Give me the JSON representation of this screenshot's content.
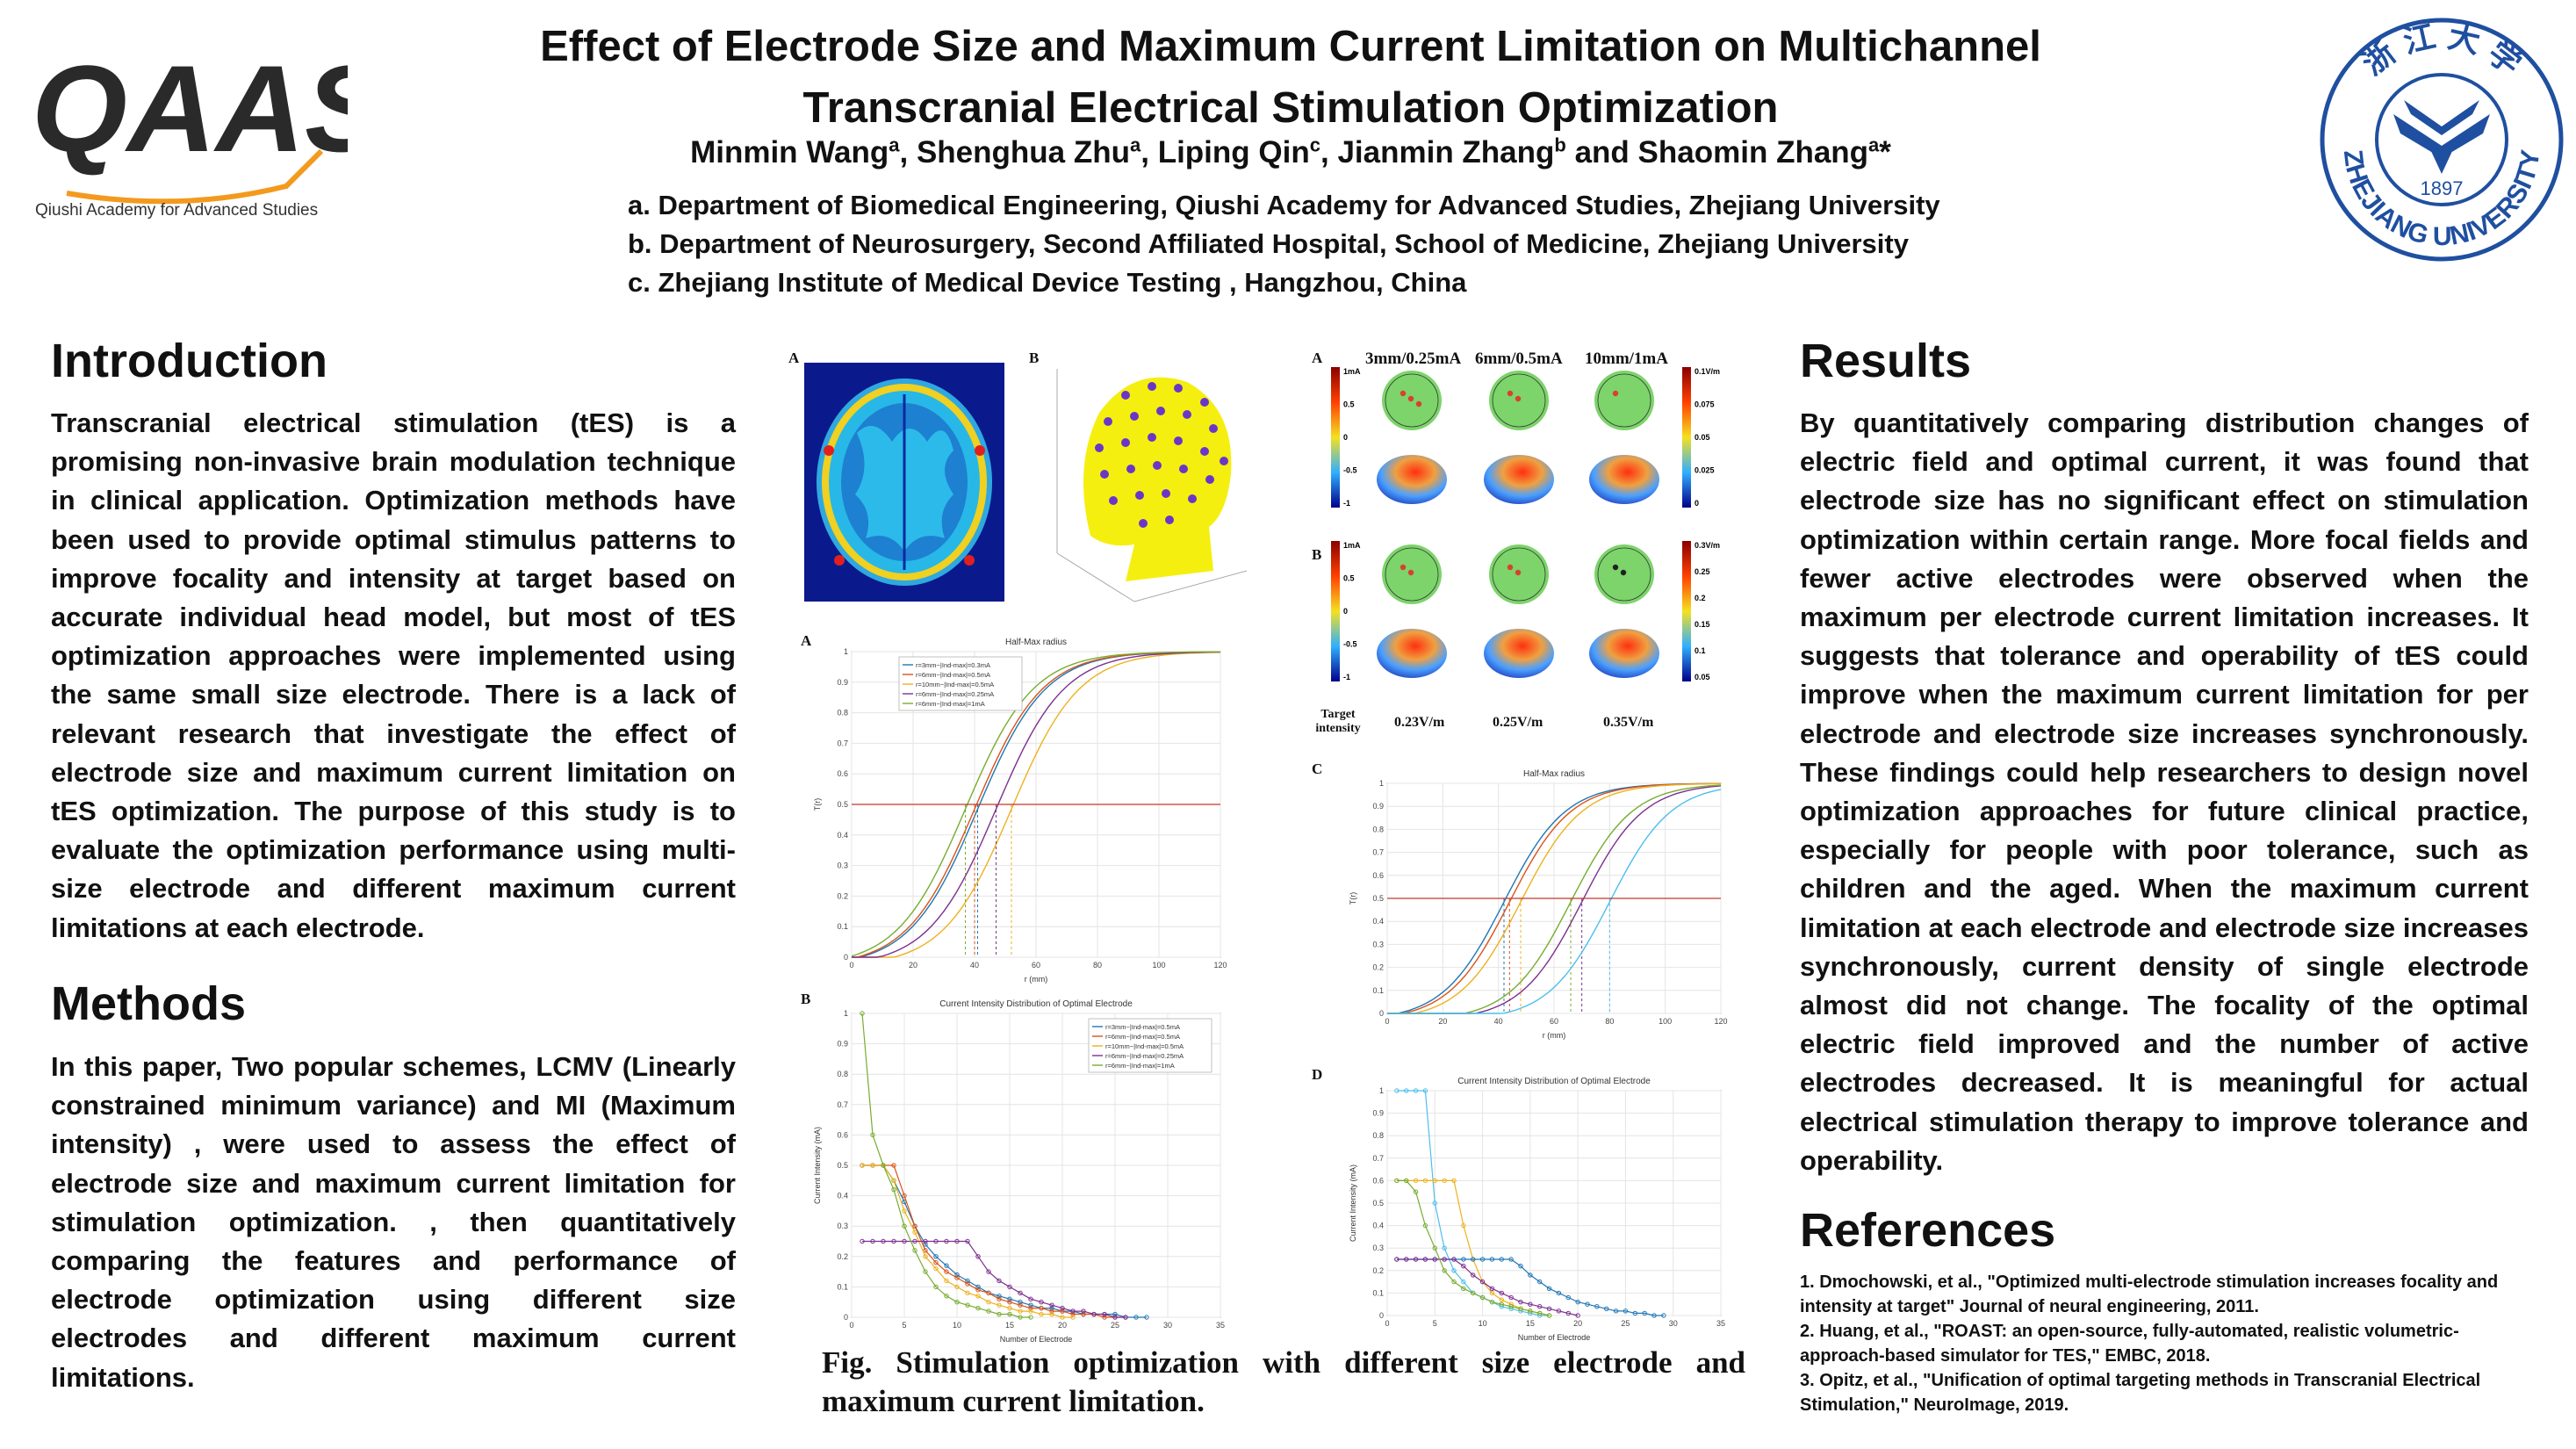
{
  "header": {
    "title_line1": "Effect of Electrode Size and Maximum Current Limitation on Multichannel",
    "title_line2": "Transcranial Electrical Stimulation Optimization",
    "authors": [
      {
        "name": "Minmin Wang",
        "sup": "a",
        "sep": ", "
      },
      {
        "name": "Shenghua Zhu",
        "sup": "a",
        "sep": ", "
      },
      {
        "name": "Liping Qin",
        "sup": "c",
        "sep": ", "
      },
      {
        "name": "Jianmin Zhang",
        "sup": "b",
        "sep": " and "
      },
      {
        "name": "Shaomin Zhang",
        "sup": "a",
        "sep": "*"
      }
    ],
    "affiliations": [
      "a. Department of Biomedical Engineering, Qiushi Academy for Advanced Studies, Zhejiang University",
      "b. Department of Neurosurgery, Second Affiliated Hospital, School of Medicine, Zhejiang University",
      "c. Zhejiang Institute of Medical Device Testing , Hangzhou, China"
    ]
  },
  "logo_left": {
    "mark": "QAAS",
    "subtitle": "Qiushi Academy for Advanced Studies",
    "colors": {
      "dark": "#2a2a2a",
      "accent": "#f39a1e"
    }
  },
  "logo_right": {
    "text_top": "浙 江 大 学",
    "year": "1897",
    "text_bottom": "ZHEJIANG UNIVERSITY",
    "color": "#1f4fa0"
  },
  "introduction": {
    "heading": "Introduction",
    "text": "Transcranial electrical stimulation (tES) is a promising non-invasive brain modulation technique in clinical application. Optimization methods have been used to provide optimal stimulus patterns to improve focality and intensity at target based on accurate individual head model, but most of tES optimization approaches were implemented using the same small size electrode. There is a lack of relevant research that investigate the effect of electrode size and maximum current limitation on tES optimization. The purpose of this study is to evaluate the optimization performance using multi-size electrode and different maximum current limitations at each electrode."
  },
  "methods": {
    "heading": "Methods",
    "text": "In this paper, Two popular schemes, LCMV (Linearly constrained minimum variance) and MI (Maximum intensity) , were used to assess the effect of electrode size and maximum current limitation for stimulation optimization. , then quantitatively comparing the features and performance of electrode optimization using different size electrodes and different maximum current limitations."
  },
  "results": {
    "heading": "Results",
    "text": "By quantitatively comparing distribution changes of electric field and optimal current, it was found that electrode size has no significant effect on stimulation optimization within certain range. More focal fields and fewer active electrodes were observed when the maximum per electrode current limitation increases. It suggests that tolerance and operability of tES could improve when the maximum current limitation for per electrode and electrode size increases synchronously. These findings could help researchers to design novel optimization approaches for future clinical practice, especially for people with poor tolerance, such as children and the aged. When the maximum current limitation at each electrode and electrode size increases synchronously, current density of single electrode almost did not change. The focality of the optimal electric field improved and the number of active electrodes decreased. It is meaningful for actual electrical stimulation therapy to improve tolerance and operability."
  },
  "references": {
    "heading": "References",
    "items": [
      "1. Dmochowski, et al., \"Optimized multi-electrode stimulation increases focality and intensity at target\" Journal of neural engineering, 2011.",
      "2. Huang, et al., \"ROAST: an open-source, fully-automated, realistic volumetric-approach-based simulator for TES,\" EMBC, 2018.",
      "3. Opitz, et al., \"Unification of optimal targeting methods in Transcranial Electrical Stimulation,\" NeuroImage, 2019."
    ]
  },
  "figure": {
    "caption": "Fig. Stimulation optimization with different size electrode and maximum current limitation.",
    "left_panels": {
      "a": "A",
      "b": "B",
      "a2": "A",
      "b2": "B"
    },
    "right_panels": {
      "a": "A",
      "b": "B",
      "c": "C",
      "d": "D"
    },
    "col_headers": [
      "3mm/0.25mA",
      "6mm/0.5mA",
      "10mm/1mA"
    ],
    "row_b_values": [
      "0.23V/m",
      "0.25V/m",
      "0.35V/m"
    ],
    "target_label": "Target intensity",
    "cbar_left": [
      "1mA",
      "0.5",
      "0",
      "-0.5",
      "-1"
    ],
    "cbar_right_a": [
      "0.1V/m",
      "0.075",
      "0.05",
      "0.025",
      "0"
    ],
    "cbar_right_b": [
      "0.3V/m",
      "0.25",
      "0.2",
      "0.15",
      "0.1",
      "0.05"
    ]
  },
  "chart_data": [
    {
      "type": "line",
      "title": "Half-Max radius",
      "xlabel": "r (mm)",
      "ylabel": "T(r)",
      "xlim": [
        0,
        120
      ],
      "ylim": [
        0,
        1
      ],
      "xticks": [
        0,
        20,
        40,
        60,
        80,
        100,
        120
      ],
      "yticks": [
        0,
        0.1,
        0.2,
        0.3,
        0.4,
        0.5,
        0.6,
        0.7,
        0.8,
        0.9,
        1
      ],
      "series": [
        {
          "name": "r=3mm~|Ind-max|=0.3mA",
          "r50": 41,
          "color": "#1f77b4"
        },
        {
          "name": "r=6mm~|Ind-max|=0.5mA",
          "r50": 40,
          "color": "#d95319"
        },
        {
          "name": "r=10mm~|Ind-max|=0.5mA",
          "r50": 52,
          "color": "#edb120"
        },
        {
          "name": "r=6mm~|Ind-max|=0.25mA",
          "r50": 47,
          "color": "#7e2f8e"
        },
        {
          "name": "r=6mm~|Ind-max|=1mA",
          "r50": 37,
          "color": "#77ac30"
        }
      ],
      "reference_line": 0.5
    },
    {
      "type": "line",
      "title": "Current Intensity Distribution of Optimal Electrode",
      "xlabel": "Number of Electrode",
      "ylabel": "Current Intensity (mA)",
      "xlim": [
        0,
        35
      ],
      "ylim": [
        0,
        1
      ],
      "xticks": [
        0,
        5,
        10,
        15,
        20,
        25,
        30,
        35
      ],
      "yticks": [
        0,
        0.1,
        0.2,
        0.3,
        0.4,
        0.5,
        0.6,
        0.7,
        0.8,
        0.9,
        1
      ],
      "series": [
        {
          "name": "r=3mm~|Ind-max|=0.5mA",
          "values": [
            0.5,
            0.5,
            0.5,
            0.45,
            0.38,
            0.3,
            0.24,
            0.2,
            0.17,
            0.14,
            0.12,
            0.1,
            0.08,
            0.07,
            0.06,
            0.05,
            0.04,
            0.03,
            0.03,
            0.02,
            0.02,
            0.01,
            0.01,
            0.01,
            0.01,
            0,
            0,
            0
          ],
          "color": "#1f77b4"
        },
        {
          "name": "r=6mm~|Ind-max|=0.5mA",
          "values": [
            0.5,
            0.5,
            0.5,
            0.5,
            0.4,
            0.3,
            0.22,
            0.18,
            0.15,
            0.13,
            0.11,
            0.09,
            0.08,
            0.06,
            0.05,
            0.04,
            0.03,
            0.03,
            0.02,
            0.02,
            0.01,
            0.01,
            0.01,
            0,
            0,
            0
          ],
          "color": "#d95319"
        },
        {
          "name": "r=10mm~|Ind-max|=0.5mA",
          "values": [
            0.5,
            0.5,
            0.5,
            0.45,
            0.35,
            0.28,
            0.2,
            0.16,
            0.12,
            0.1,
            0.08,
            0.07,
            0.05,
            0.04,
            0.03,
            0.02,
            0.02,
            0.01,
            0.01,
            0,
            0
          ],
          "color": "#edb120"
        },
        {
          "name": "r=6mm~|Ind-max|=0.25mA",
          "values": [
            0.25,
            0.25,
            0.25,
            0.25,
            0.25,
            0.25,
            0.25,
            0.25,
            0.25,
            0.25,
            0.25,
            0.2,
            0.15,
            0.12,
            0.1,
            0.08,
            0.06,
            0.05,
            0.04,
            0.03,
            0.02,
            0.02,
            0.01,
            0.01,
            0,
            0
          ],
          "color": "#7e2f8e"
        },
        {
          "name": "r=6mm~|Ind-max|=1mA",
          "values": [
            1,
            0.6,
            0.5,
            0.42,
            0.3,
            0.22,
            0.15,
            0.1,
            0.07,
            0.05,
            0.04,
            0.03,
            0.02,
            0.01,
            0.01,
            0,
            0
          ],
          "color": "#77ac30"
        }
      ]
    },
    {
      "type": "line",
      "title": "Half-Max radius",
      "xlabel": "r (mm)",
      "ylabel": "T(r)",
      "xlim": [
        0,
        120
      ],
      "ylim": [
        0,
        1
      ],
      "xticks": [
        0,
        20,
        40,
        60,
        80,
        100,
        120
      ],
      "yticks": [
        0,
        0.1,
        0.2,
        0.3,
        0.4,
        0.5,
        0.6,
        0.7,
        0.8,
        0.9,
        1
      ],
      "series": [
        {
          "r50": 42,
          "color": "#1f77b4"
        },
        {
          "r50": 44,
          "color": "#d95319"
        },
        {
          "r50": 48,
          "color": "#edb120"
        },
        {
          "r50": 70,
          "color": "#7e2f8e"
        },
        {
          "r50": 66,
          "color": "#77ac30"
        },
        {
          "r50": 80,
          "color": "#4dbeee"
        }
      ],
      "reference_line": 0.5
    },
    {
      "type": "line",
      "title": "Current Intensity Distribution of Optimal Electrode",
      "xlabel": "Number of Electrode",
      "ylabel": "Current Intensity (mA)",
      "xlim": [
        0,
        35
      ],
      "ylim": [
        0,
        1
      ],
      "xticks": [
        0,
        5,
        10,
        15,
        20,
        25,
        30,
        35
      ],
      "yticks": [
        0,
        0.1,
        0.2,
        0.3,
        0.4,
        0.5,
        0.6,
        0.7,
        0.8,
        0.9,
        1
      ],
      "series": [
        {
          "values": [
            1,
            1,
            1,
            1,
            0.5,
            0.3,
            0.2,
            0.15,
            0.1,
            0.08,
            0.06,
            0.04,
            0.03,
            0.02,
            0.01,
            0,
            0
          ],
          "color": "#4dbeee"
        },
        {
          "values": [
            0.6,
            0.6,
            0.6,
            0.6,
            0.6,
            0.6,
            0.6,
            0.4,
            0.25,
            0.15,
            0.1,
            0.07,
            0.05,
            0.03,
            0.02,
            0.01,
            0
          ],
          "color": "#edb120"
        },
        {
          "values": [
            0.25,
            0.25,
            0.25,
            0.25,
            0.25,
            0.25,
            0.25,
            0.25,
            0.25,
            0.25,
            0.25,
            0.25,
            0.25,
            0.22,
            0.18,
            0.15,
            0.12,
            0.1,
            0.08,
            0.06,
            0.05,
            0.04,
            0.03,
            0.02,
            0.02,
            0.01,
            0.01,
            0,
            0
          ],
          "color": "#1f77b4"
        },
        {
          "values": [
            0.25,
            0.25,
            0.25,
            0.25,
            0.25,
            0.25,
            0.25,
            0.22,
            0.18,
            0.15,
            0.12,
            0.1,
            0.08,
            0.06,
            0.05,
            0.04,
            0.03,
            0.02,
            0.01,
            0
          ],
          "color": "#7e2f8e"
        },
        {
          "values": [
            0.6,
            0.6,
            0.55,
            0.4,
            0.3,
            0.2,
            0.15,
            0.12,
            0.1,
            0.08,
            0.06,
            0.05,
            0.04,
            0.03,
            0.02,
            0.01,
            0
          ],
          "color": "#77ac30"
        }
      ]
    }
  ]
}
